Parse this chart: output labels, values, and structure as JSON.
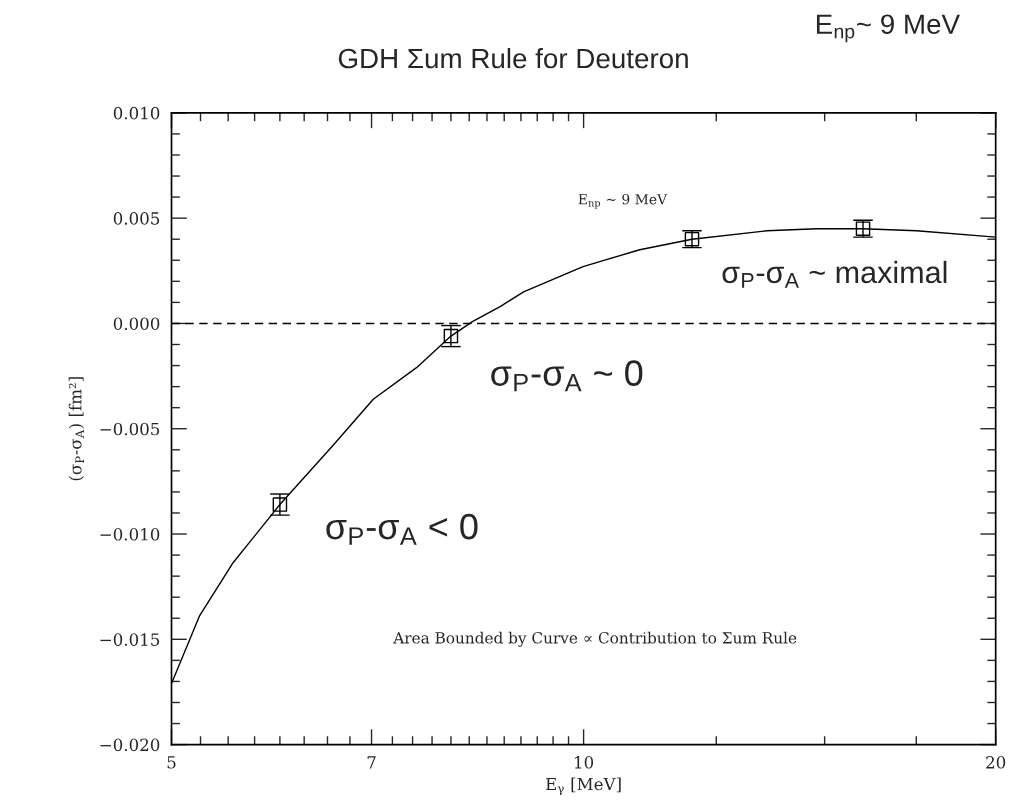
{
  "chart_data": {
    "type": "line",
    "title": "GDH Σum Rule for Deuteron",
    "xlabel": "E$_{γ}$ [MeV]",
    "ylabel": "(σ$_{P}$-σ$_{A}$) [fm²]",
    "series": [
      {
        "color": "#000000",
        "x": [
          5,
          5.24,
          5.54,
          6.0,
          6.56,
          7.02,
          7.55,
          8.0,
          8.3,
          8.69,
          9.04,
          9.99,
          10.99,
          12.0,
          13.61,
          14.8,
          16.0,
          17.51,
          20
        ],
        "values": [
          -0.0171,
          -0.0139,
          -0.0114,
          -0.0086,
          -0.0058,
          -0.0036,
          -0.0021,
          -0.0006,
          0.0001,
          0.0008,
          0.0015,
          0.0027,
          0.0035,
          0.004,
          0.0044,
          0.0045,
          0.0045,
          0.0044,
          0.0041
        ],
        "marker": "none",
        "line_style": "solid"
      },
      {
        "type": "scatter",
        "color": "#000000",
        "x": [
          6.0,
          8.0,
          12.0,
          16.0
        ],
        "values": [
          -0.0086,
          -0.0006,
          0.004,
          0.0045
        ],
        "errors": [
          0.0005,
          0.0005,
          0.0004,
          0.0004
        ],
        "marker": "square"
      }
    ],
    "ref_lines": [
      {
        "axis": "y",
        "value": 0,
        "color": "#000000",
        "line_style": "dashed"
      }
    ],
    "annotations": [
      "E$_{np}$~ 9 MeV",
      "E$_{np}$ ~ 9 MeV",
      "σ$_{P}$-σ$_{A}$ ~ maximal",
      "σ$_{P}$-σ$_{A}$ ~ 0",
      "σ$_{P}$-σ$_{A}$ < 0",
      "Area Bounded by Curve ∝ Contribution to Σum Rule"
    ],
    "log": "x",
    "grid": false,
    "xlim": [
      5,
      20
    ],
    "xticks": [
      5,
      7,
      10,
      20
    ],
    "ylim": [
      -0.02,
      0.01
    ],
    "yticks": [
      {
        "value": -0.02,
        "label": "−0.020"
      },
      {
        "value": -0.015,
        "label": "−0.015"
      },
      {
        "value": -0.01,
        "label": "−0.010"
      },
      {
        "value": -0.005,
        "label": "−0.005"
      },
      {
        "value": 0,
        "label": "0.000"
      },
      {
        "value": 0.005,
        "label": "0.005"
      },
      {
        "value": 0.01,
        "label": "0.010"
      }
    ]
  }
}
